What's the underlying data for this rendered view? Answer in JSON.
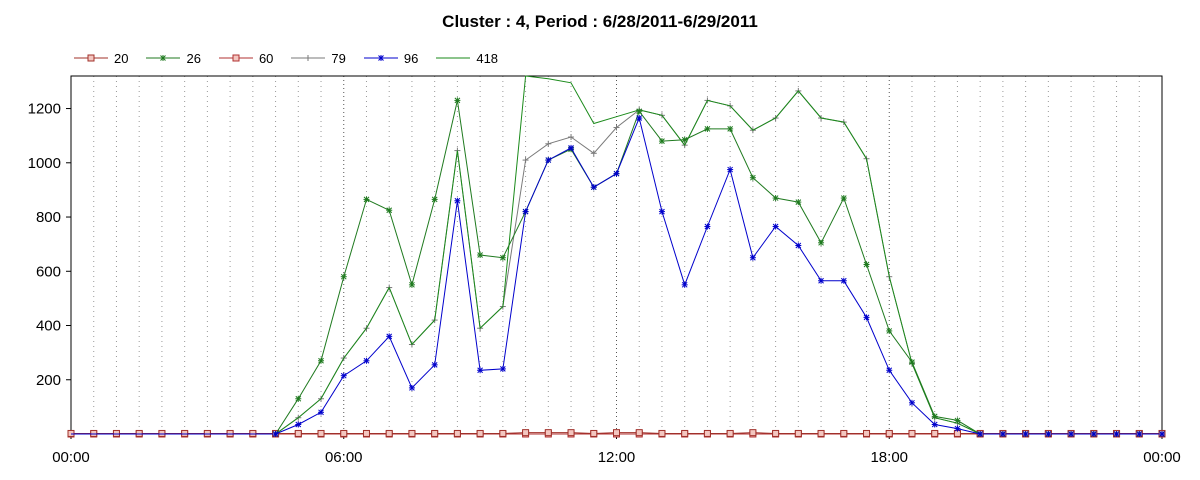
{
  "chart_data": {
    "type": "line",
    "title": "Cluster : 4, Period : 6/28/2011-6/29/2011",
    "xlabel": "",
    "ylabel": "",
    "x_ticks": [
      "00:00",
      "06:00",
      "12:00",
      "18:00",
      "00:00"
    ],
    "y_ticks": [
      200,
      400,
      600,
      800,
      1000,
      1200
    ],
    "xlim_hours": [
      0,
      24
    ],
    "ylim": [
      0,
      1320
    ],
    "grid": "vertical dotted, every 30 minutes",
    "legend": "top-left, horizontal",
    "x_hours": [
      0,
      0.5,
      1,
      1.5,
      2,
      2.5,
      3,
      3.5,
      4,
      4.5,
      5,
      5.5,
      6,
      6.5,
      7,
      7.5,
      8,
      8.5,
      9,
      9.5,
      10,
      10.5,
      11,
      11.5,
      12,
      12.5,
      13,
      13.5,
      14,
      14.5,
      15,
      15.5,
      16,
      16.5,
      17,
      17.5,
      18,
      18.5,
      19,
      19.5,
      20,
      20.5,
      21,
      21.5,
      22,
      22.5,
      23,
      23.5,
      24
    ],
    "series": [
      {
        "name": "20",
        "color": "#a0302a",
        "marker": "square",
        "values": [
          2,
          2,
          2,
          2,
          2,
          2,
          2,
          2,
          2,
          2,
          2,
          2,
          2,
          2,
          2,
          2,
          2,
          2,
          2,
          2,
          5,
          5,
          5,
          2,
          5,
          5,
          2,
          2,
          2,
          2,
          5,
          2,
          2,
          2,
          2,
          2,
          2,
          2,
          2,
          2,
          2,
          2,
          2,
          2,
          2,
          2,
          2,
          2,
          2
        ]
      },
      {
        "name": "26",
        "color": "#1f7a1f",
        "marker": "star",
        "values": [
          0,
          0,
          0,
          0,
          0,
          0,
          0,
          0,
          0,
          0,
          130,
          270,
          580,
          865,
          825,
          550,
          865,
          1230,
          660,
          650,
          820,
          1010,
          1050,
          910,
          960,
          1190,
          1080,
          1085,
          1125,
          1125,
          945,
          870,
          855,
          705,
          870,
          625,
          380,
          265,
          65,
          50,
          0,
          0,
          0,
          0,
          0,
          0,
          0,
          0,
          0
        ]
      },
      {
        "name": "60",
        "color": "#b03030",
        "marker": "square",
        "values": [
          0,
          0,
          0,
          0,
          0,
          0,
          0,
          0,
          0,
          0,
          0,
          0,
          0,
          0,
          0,
          0,
          0,
          0,
          0,
          0,
          0,
          0,
          0,
          0,
          0,
          0,
          0,
          0,
          0,
          0,
          0,
          0,
          0,
          0,
          0,
          0,
          0,
          0,
          0,
          0,
          0,
          0,
          0,
          0,
          0,
          0,
          0,
          0,
          0
        ]
      },
      {
        "name": "79",
        "color": "#7a7a7a",
        "marker": "plus",
        "values": [
          0,
          0,
          0,
          0,
          0,
          0,
          0,
          0,
          0,
          0,
          60,
          130,
          280,
          390,
          540,
          330,
          420,
          1045,
          390,
          470,
          1010,
          1070,
          1095,
          1035,
          1130,
          1195,
          1175,
          1065,
          1230,
          1210,
          1120,
          1165,
          1265,
          1165,
          1150,
          1015,
          580,
          260,
          60,
          40,
          0,
          0,
          0,
          0,
          0,
          0,
          0,
          0,
          0
        ]
      },
      {
        "name": "96",
        "color": "#0000cc",
        "marker": "star",
        "values": [
          0,
          0,
          0,
          0,
          0,
          0,
          0,
          0,
          0,
          0,
          35,
          80,
          215,
          270,
          360,
          170,
          255,
          860,
          235,
          240,
          820,
          1010,
          1055,
          910,
          960,
          1165,
          820,
          550,
          765,
          975,
          650,
          765,
          695,
          565,
          565,
          430,
          235,
          115,
          35,
          20,
          0,
          0,
          0,
          0,
          0,
          0,
          0,
          0,
          0
        ]
      },
      {
        "name": "418",
        "color": "#1a8a1a",
        "marker": "none",
        "values": [
          0,
          0,
          0,
          0,
          0,
          0,
          0,
          0,
          0,
          0,
          60,
          130,
          280,
          390,
          540,
          330,
          420,
          1045,
          390,
          470,
          1320,
          1310,
          1295,
          1145,
          1170,
          1195,
          1175,
          1065,
          1230,
          1210,
          1120,
          1165,
          1265,
          1165,
          1150,
          1015,
          580,
          260,
          60,
          40,
          0,
          0,
          0,
          0,
          0,
          0,
          0,
          0,
          0
        ]
      }
    ]
  }
}
